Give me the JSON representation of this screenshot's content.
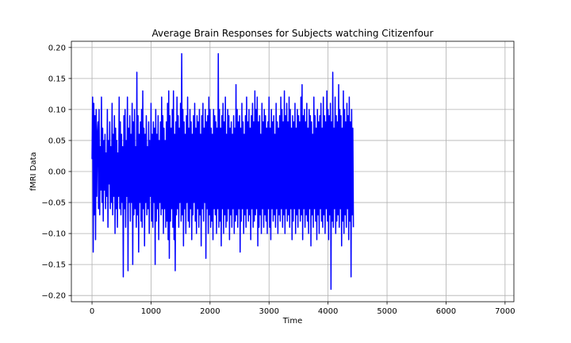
{
  "chart_data": {
    "type": "line",
    "title": "Average Brain Responses for Subjects watching Citizenfour",
    "xlabel": "Time",
    "ylabel": "fMRI Data",
    "xlim": [
      -350,
      7150
    ],
    "ylim": [
      -0.21,
      0.21
    ],
    "x_ticks": [
      0,
      1000,
      2000,
      3000,
      4000,
      5000,
      6000,
      7000
    ],
    "x_tick_labels": [
      "0",
      "1000",
      "2000",
      "3000",
      "4000",
      "5000",
      "6000",
      "7000"
    ],
    "y_ticks": [
      -0.2,
      -0.15,
      -0.1,
      -0.05,
      0.0,
      0.05,
      0.1,
      0.15,
      0.2
    ],
    "y_tick_labels": [
      "−0.20",
      "−0.15",
      "−0.10",
      "−0.05",
      "0.00",
      "0.05",
      "0.10",
      "0.15",
      "0.20"
    ],
    "grid": true,
    "legend": "none",
    "series": [
      {
        "color": "#0000ff",
        "x_start": 0,
        "x_step": 10,
        "values": [
          0.02,
          0.12,
          -0.13,
          0.11,
          -0.07,
          0.09,
          -0.11,
          0.1,
          -0.04,
          0.06,
          0.08,
          -0.06,
          0.1,
          -0.07,
          0.04,
          -0.03,
          0.12,
          -0.05,
          0.07,
          -0.08,
          0.05,
          -0.03,
          0.06,
          -0.06,
          0.03,
          -0.04,
          0.1,
          -0.09,
          0.05,
          -0.02,
          0.08,
          -0.06,
          0.04,
          -0.05,
          0.11,
          -0.07,
          0.06,
          -0.04,
          0.09,
          -0.1,
          0.07,
          -0.06,
          0.05,
          -0.09,
          0.03,
          -0.04,
          0.12,
          -0.06,
          0.08,
          -0.07,
          0.06,
          -0.05,
          0.04,
          -0.17,
          0.09,
          -0.06,
          0.1,
          -0.09,
          0.05,
          -0.04,
          0.12,
          -0.16,
          0.07,
          -0.05,
          0.09,
          -0.08,
          0.06,
          -0.05,
          0.11,
          -0.15,
          0.08,
          -0.07,
          0.1,
          -0.06,
          0.04,
          -0.09,
          0.16,
          -0.07,
          0.09,
          -0.13,
          0.06,
          -0.05,
          0.08,
          -0.08,
          0.1,
          -0.09,
          0.13,
          -0.06,
          0.07,
          -0.12,
          0.06,
          -0.05,
          0.09,
          -0.07,
          0.04,
          -0.06,
          0.08,
          -0.1,
          0.05,
          -0.04,
          0.11,
          -0.08,
          0.06,
          -0.09,
          0.08,
          -0.05,
          0.07,
          -0.15,
          0.1,
          -0.08,
          0.06,
          -0.06,
          0.09,
          -0.11,
          0.05,
          -0.05,
          0.08,
          -0.07,
          0.12,
          -0.06,
          0.09,
          -0.1,
          0.07,
          -0.06,
          0.05,
          -0.09,
          0.08,
          -0.08,
          0.11,
          -0.11,
          0.13,
          -0.14,
          0.09,
          -0.08,
          0.07,
          -0.06,
          0.1,
          -0.09,
          0.13,
          -0.11,
          0.06,
          -0.16,
          0.08,
          -0.07,
          0.12,
          -0.06,
          0.09,
          -0.09,
          0.07,
          -0.05,
          0.11,
          -0.08,
          0.19,
          -0.07,
          0.1,
          -0.12,
          0.08,
          -0.06,
          0.06,
          -0.1,
          0.09,
          -0.05,
          0.12,
          -0.08,
          0.07,
          -0.09,
          0.1,
          -0.06,
          0.08,
          -0.11,
          0.06,
          -0.07,
          0.09,
          -0.05,
          0.11,
          -0.08,
          0.07,
          -0.1,
          0.09,
          -0.06,
          0.08,
          -0.09,
          0.1,
          -0.07,
          0.06,
          -0.12,
          0.09,
          -0.06,
          0.11,
          -0.08,
          0.07,
          -0.05,
          0.1,
          -0.14,
          0.08,
          -0.06,
          0.09,
          -0.1,
          0.12,
          -0.07,
          0.1,
          -0.09,
          0.07,
          -0.08,
          0.06,
          -0.11,
          0.1,
          -0.06,
          0.09,
          -0.07,
          0.08,
          -0.1,
          0.07,
          -0.06,
          0.19,
          -0.09,
          0.1,
          -0.08,
          0.07,
          -0.12,
          0.09,
          -0.06,
          0.11,
          -0.1,
          0.08,
          -0.07,
          0.12,
          -0.09,
          0.06,
          -0.08,
          0.1,
          -0.06,
          0.09,
          -0.11,
          0.07,
          -0.07,
          0.08,
          -0.09,
          0.06,
          -0.06,
          0.09,
          -0.1,
          0.07,
          -0.08,
          0.14,
          -0.07,
          0.1,
          -0.09,
          0.08,
          -0.06,
          0.09,
          -0.13,
          0.07,
          -0.08,
          0.11,
          -0.06,
          0.08,
          -0.1,
          0.06,
          -0.07,
          0.09,
          -0.09,
          0.12,
          -0.06,
          0.08,
          -0.08,
          0.1,
          -0.07,
          0.07,
          -0.11,
          0.09,
          -0.06,
          0.11,
          -0.09,
          0.08,
          -0.08,
          0.13,
          -0.07,
          0.1,
          -0.06,
          0.12,
          -0.12,
          0.08,
          -0.09,
          0.09,
          -0.07,
          0.06,
          -0.1,
          0.11,
          -0.06,
          0.08,
          -0.09,
          0.1,
          -0.07,
          0.09,
          -0.08,
          0.07,
          -0.1,
          0.08,
          -0.06,
          0.12,
          -0.09,
          0.07,
          -0.11,
          0.1,
          -0.06,
          0.08,
          -0.08,
          0.09,
          -0.07,
          0.06,
          -0.09,
          0.11,
          -0.06,
          0.08,
          -0.1,
          0.07,
          -0.07,
          0.09,
          -0.08,
          0.12,
          -0.06,
          0.1,
          -0.09,
          0.08,
          -0.07,
          0.13,
          -0.1,
          0.09,
          -0.06,
          0.11,
          -0.08,
          0.08,
          -0.07,
          0.12,
          -0.09,
          0.1,
          -0.06,
          0.07,
          -0.11,
          0.09,
          -0.08,
          0.08,
          -0.06,
          0.11,
          -0.1,
          0.07,
          -0.07,
          0.1,
          -0.09,
          0.09,
          -0.06,
          0.08,
          -0.08,
          0.12,
          -0.07,
          0.14,
          -0.11,
          0.09,
          -0.06,
          0.1,
          -0.09,
          0.08,
          -0.07,
          0.11,
          -0.08,
          0.07,
          -0.1,
          0.1,
          -0.06,
          0.09,
          -0.12,
          0.08,
          -0.07,
          0.06,
          -0.09,
          0.12,
          -0.06,
          0.09,
          -0.08,
          0.07,
          -0.11,
          0.1,
          -0.07,
          0.08,
          -0.1,
          0.09,
          -0.06,
          0.11,
          -0.08,
          0.07,
          -0.09,
          0.12,
          -0.07,
          0.09,
          -0.1,
          0.08,
          -0.06,
          0.13,
          -0.08,
          0.1,
          -0.11,
          0.09,
          -0.07,
          0.11,
          -0.19,
          0.08,
          -0.08,
          0.16,
          -0.09,
          0.07,
          -0.06,
          0.12,
          -0.1,
          0.09,
          -0.08,
          0.08,
          -0.07,
          0.14,
          -0.09,
          0.1,
          -0.06,
          0.09,
          -0.12,
          0.07,
          -0.08,
          0.13,
          -0.1,
          0.1,
          -0.07,
          0.08,
          -0.09,
          0.11,
          -0.06,
          0.09,
          -0.11,
          0.12,
          -0.08,
          0.08,
          -0.17,
          0.1,
          -0.07,
          0.07,
          -0.09
        ]
      }
    ]
  }
}
